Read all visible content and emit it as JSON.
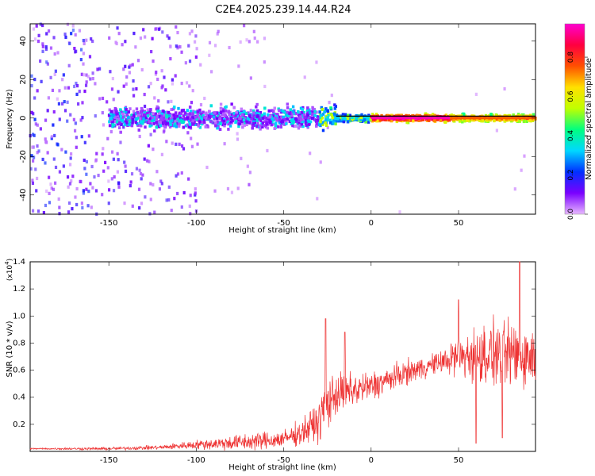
{
  "title": "C2E4.2025.239.14.44.R24",
  "chart_data": [
    {
      "type": "heatmap",
      "xlabel": "Height of straight line (km)",
      "ylabel": "Frequency (Hz)",
      "xlim": [
        -195,
        94
      ],
      "ylim": [
        -50,
        49
      ],
      "xticks": [
        -150,
        -100,
        -50,
        0,
        50
      ],
      "yticks": [
        -40,
        -20,
        0,
        20,
        40
      ],
      "colorbar": {
        "label": "Normalized spectral amplitude",
        "range": [
          0,
          0.97
        ],
        "ticks": [
          "0.0",
          "0.2",
          "0.4",
          "0.6",
          "0.8"
        ],
        "tick_values": [
          0.0,
          0.2,
          0.4,
          0.6,
          0.8
        ],
        "colors": [
          "#e8b8ff",
          "#7a00ff",
          "#0030ff",
          "#00d8ff",
          "#00ff80",
          "#c0ff00",
          "#ffe000",
          "#ff5000",
          "#ff0040",
          "#ff00d0"
        ]
      },
      "line_segments": [
        [
          -195,
          -30,
          0.05
        ],
        [
          -30,
          0,
          0.3
        ],
        [
          0,
          45,
          0.95
        ],
        [
          45,
          94,
          0.75
        ]
      ]
    },
    {
      "type": "line",
      "xlabel": "Height of straight line (km)",
      "ylabel": "SNR (10 * v/v)",
      "y_multiplier": "(x10",
      "y_multiplier_exp": "4",
      "y_multiplier_close": ")",
      "xlim": [
        -195,
        94
      ],
      "ylim": [
        0,
        1.4
      ],
      "xticks": [
        -150,
        -100,
        -50,
        0,
        50
      ],
      "yticks": [
        0.2,
        0.4,
        0.6,
        0.8,
        1.0,
        1.2,
        1.4
      ],
      "ytick_labels": [
        "0.2",
        "0.4",
        "0.6",
        "0.8",
        "1.0",
        "1.2",
        "1.4"
      ],
      "line_color": "#ee3333",
      "envelope": [
        {
          "x": -195,
          "y": 0.02,
          "noise": 0.005
        },
        {
          "x": -150,
          "y": 0.02,
          "noise": 0.01
        },
        {
          "x": -120,
          "y": 0.03,
          "noise": 0.015
        },
        {
          "x": -100,
          "y": 0.05,
          "noise": 0.03
        },
        {
          "x": -70,
          "y": 0.07,
          "noise": 0.06
        },
        {
          "x": -50,
          "y": 0.09,
          "noise": 0.06
        },
        {
          "x": -40,
          "y": 0.14,
          "noise": 0.08
        },
        {
          "x": -30,
          "y": 0.22,
          "noise": 0.14
        },
        {
          "x": -25,
          "y": 0.36,
          "noise": 0.18
        },
        {
          "x": -20,
          "y": 0.42,
          "noise": 0.14
        },
        {
          "x": 0,
          "y": 0.48,
          "noise": 0.1
        },
        {
          "x": 20,
          "y": 0.58,
          "noise": 0.08
        },
        {
          "x": 40,
          "y": 0.66,
          "noise": 0.07
        },
        {
          "x": 50,
          "y": 0.7,
          "noise": 0.16
        },
        {
          "x": 70,
          "y": 0.72,
          "noise": 0.22
        },
        {
          "x": 94,
          "y": 0.7,
          "noise": 0.22
        }
      ],
      "peaks": [
        {
          "x": -26,
          "y": 0.98
        },
        {
          "x": -15,
          "y": 0.88
        },
        {
          "x": 50,
          "y": 1.12
        },
        {
          "x": 75,
          "y": 1.16
        },
        {
          "x": 85,
          "y": 1.4
        },
        {
          "x": 60,
          "y": 0.06
        },
        {
          "x": 75,
          "y": 0.1
        }
      ]
    }
  ]
}
